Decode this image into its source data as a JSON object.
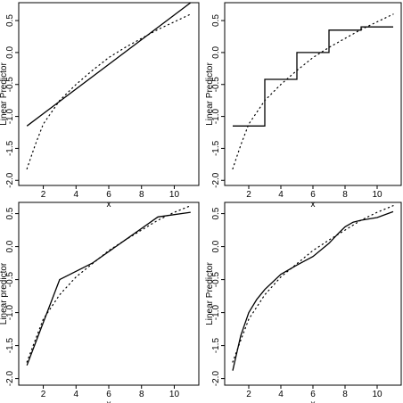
{
  "chart_data": [
    {
      "type": "line",
      "xlabel": "x",
      "ylabel": "Linear Predictor",
      "xlim": [
        0.5,
        11.5
      ],
      "ylim": [
        -2.08,
        0.78
      ],
      "xticks": [
        2,
        4,
        6,
        8,
        10
      ],
      "yticks": [
        -2.0,
        -1.5,
        -1.0,
        -0.5,
        0.0,
        0.5
      ],
      "yticklabels": [
        "-2.0",
        "-1.5",
        "-1.0",
        "-0.5",
        "0.0",
        "0.5"
      ],
      "series": [
        {
          "style": "solid",
          "points": [
            [
              1,
              -1.15
            ],
            [
              11,
              0.78
            ]
          ]
        },
        {
          "style": "dotted",
          "points": [
            [
              1,
              -1.82
            ],
            [
              1.5,
              -1.45
            ],
            [
              2,
              -1.12
            ],
            [
              3,
              -0.75
            ],
            [
              4,
              -0.5
            ],
            [
              5,
              -0.28
            ],
            [
              6,
              -0.08
            ],
            [
              7,
              0.08
            ],
            [
              8,
              0.22
            ],
            [
              9,
              0.36
            ],
            [
              10,
              0.48
            ],
            [
              11,
              0.6
            ]
          ]
        }
      ]
    },
    {
      "type": "line",
      "xlabel": "x",
      "ylabel": "Linear Predictor",
      "xlim": [
        0.5,
        11.5
      ],
      "ylim": [
        -2.08,
        0.78
      ],
      "xticks": [
        2,
        4,
        6,
        8,
        10
      ],
      "yticks": [
        -2.0,
        -1.5,
        -1.0,
        -0.5,
        0.0,
        0.5
      ],
      "yticklabels": [
        "-2.0",
        "-1.5",
        "-1.0",
        "-0.5",
        "0.0",
        "0.5"
      ],
      "series": [
        {
          "style": "solid",
          "points": [
            [
              1,
              -1.15
            ],
            [
              3,
              -1.15
            ],
            [
              3,
              -0.42
            ],
            [
              5,
              -0.42
            ],
            [
              5,
              0.0
            ],
            [
              7,
              0.0
            ],
            [
              7,
              0.35
            ],
            [
              9,
              0.35
            ],
            [
              9,
              0.4
            ],
            [
              11,
              0.4
            ]
          ]
        },
        {
          "style": "dotted",
          "points": [
            [
              1,
              -1.82
            ],
            [
              1.5,
              -1.45
            ],
            [
              2,
              -1.12
            ],
            [
              3,
              -0.75
            ],
            [
              4,
              -0.5
            ],
            [
              5,
              -0.28
            ],
            [
              6,
              -0.08
            ],
            [
              7,
              0.08
            ],
            [
              8,
              0.22
            ],
            [
              9,
              0.36
            ],
            [
              10,
              0.48
            ],
            [
              11,
              0.6
            ]
          ]
        }
      ]
    },
    {
      "type": "line",
      "xlabel": "x",
      "ylabel": "Linear predictor",
      "xlim": [
        0.5,
        11.5
      ],
      "ylim": [
        -2.1,
        0.67
      ],
      "xticks": [
        2,
        4,
        6,
        8,
        10
      ],
      "yticks": [
        -2.0,
        -1.5,
        -1.0,
        -0.5,
        0.0,
        0.5
      ],
      "yticklabels": [
        "-2.0",
        "-1.5",
        "-1.0",
        "-0.5",
        "0.0",
        "0.5"
      ],
      "series": [
        {
          "style": "solid",
          "points": [
            [
              1,
              -1.8
            ],
            [
              3,
              -0.5
            ],
            [
              5,
              -0.25
            ],
            [
              7,
              0.1
            ],
            [
              9,
              0.45
            ],
            [
              11,
              0.52
            ]
          ]
        },
        {
          "style": "dotted",
          "points": [
            [
              1,
              -1.75
            ],
            [
              1.5,
              -1.42
            ],
            [
              2,
              -1.1
            ],
            [
              3,
              -0.73
            ],
            [
              4,
              -0.46
            ],
            [
              5,
              -0.26
            ],
            [
              6,
              -0.06
            ],
            [
              7,
              0.1
            ],
            [
              8,
              0.25
            ],
            [
              9,
              0.4
            ],
            [
              10,
              0.52
            ],
            [
              11,
              0.62
            ]
          ]
        }
      ]
    },
    {
      "type": "line",
      "xlabel": "x",
      "ylabel": "Linear Predictor",
      "xlim": [
        0.5,
        11.5
      ],
      "ylim": [
        -2.1,
        0.67
      ],
      "xticks": [
        2,
        4,
        6,
        8,
        10
      ],
      "yticks": [
        -2.0,
        -1.5,
        -1.0,
        -0.5,
        0.0,
        0.5
      ],
      "yticklabels": [
        "-2.0",
        "-1.5",
        "-1.0",
        "-0.5",
        "0.0",
        "0.5"
      ],
      "series": [
        {
          "style": "solid",
          "points": [
            [
              1,
              -1.88
            ],
            [
              1.5,
              -1.35
            ],
            [
              2,
              -1.0
            ],
            [
              2.5,
              -0.8
            ],
            [
              3,
              -0.65
            ],
            [
              4,
              -0.42
            ],
            [
              5,
              -0.28
            ],
            [
              6,
              -0.15
            ],
            [
              7,
              0.05
            ],
            [
              7.5,
              0.18
            ],
            [
              8,
              0.3
            ],
            [
              8.5,
              0.37
            ],
            [
              9,
              0.4
            ],
            [
              9.5,
              0.42
            ],
            [
              10,
              0.44
            ],
            [
              11,
              0.53
            ]
          ]
        },
        {
          "style": "dotted",
          "points": [
            [
              1,
              -1.75
            ],
            [
              1.5,
              -1.42
            ],
            [
              2,
              -1.1
            ],
            [
              3,
              -0.73
            ],
            [
              4,
              -0.46
            ],
            [
              5,
              -0.26
            ],
            [
              6,
              -0.06
            ],
            [
              7,
              0.1
            ],
            [
              8,
              0.25
            ],
            [
              9,
              0.4
            ],
            [
              10,
              0.52
            ],
            [
              11,
              0.62
            ]
          ]
        }
      ]
    }
  ]
}
